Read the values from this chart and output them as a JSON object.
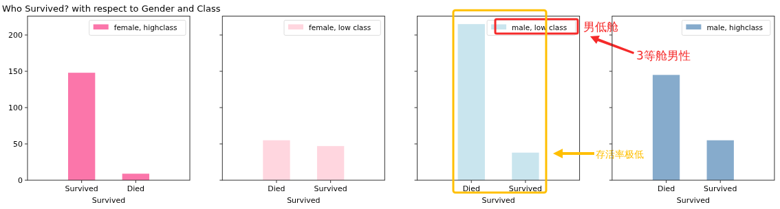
{
  "chart_data": [
    {
      "type": "bar",
      "title": "Who Survived? with respect to Gender and Class",
      "xlabel": "Survived",
      "categories": [
        "Survived",
        "Died"
      ],
      "series": [
        {
          "name": "female, highclass",
          "color": "#fb76aa",
          "values": [
            148,
            9
          ]
        }
      ],
      "ylim": [
        0,
        226
      ],
      "yticks": [
        0,
        50,
        100,
        150,
        200
      ],
      "legend": "top right"
    },
    {
      "type": "bar",
      "xlabel": "Survived",
      "categories": [
        "Died",
        "Survived"
      ],
      "series": [
        {
          "name": "female, low class",
          "color": "#ffd6df",
          "values": [
            55,
            47
          ]
        }
      ],
      "ylim": [
        0,
        226
      ],
      "yticks": [
        0,
        50,
        100,
        150,
        200
      ],
      "tick_labels": "x",
      "legend": "top right"
    },
    {
      "type": "bar",
      "xlabel": "Survived",
      "categories": [
        "Died",
        "Survived"
      ],
      "series": [
        {
          "name": "male, low class",
          "color": "#c9e5ee",
          "values": [
            215,
            38
          ]
        }
      ],
      "ylim": [
        0,
        226
      ],
      "yticks": [
        0,
        50,
        100,
        150,
        200
      ],
      "tick_labels": "x",
      "legend": "top right",
      "annotations": [
        "男低舱",
        "3等舱男性",
        "存活率极低"
      ]
    },
    {
      "type": "bar",
      "xlabel": "Survived",
      "categories": [
        "Died",
        "Survived"
      ],
      "series": [
        {
          "name": "male, highclass",
          "color": "#86abcc",
          "values": [
            145,
            55
          ]
        }
      ],
      "ylim": [
        0,
        226
      ],
      "yticks": [
        0,
        50,
        100,
        150,
        200
      ],
      "tick_labels": "x",
      "legend": "top right"
    }
  ]
}
